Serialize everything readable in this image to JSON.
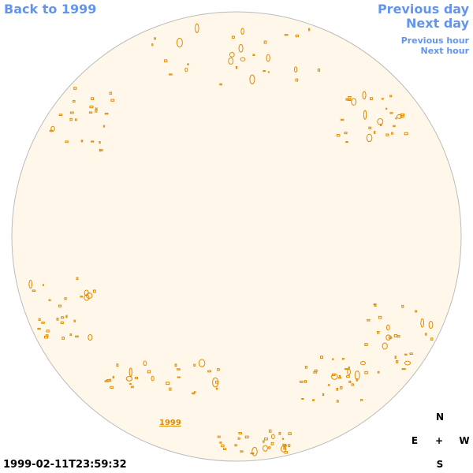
{
  "nav": {
    "back": "Back to 1999",
    "previous_day": "Previous day",
    "next_day": "Next day",
    "previous_hour": "Previous hour",
    "next_hour": "Next hour"
  },
  "year_link": "1999",
  "compass": {
    "north": "N",
    "east": "E",
    "center": "+",
    "west": "W",
    "south": "S"
  },
  "timestamp": "1999-02-11T23:59:32"
}
